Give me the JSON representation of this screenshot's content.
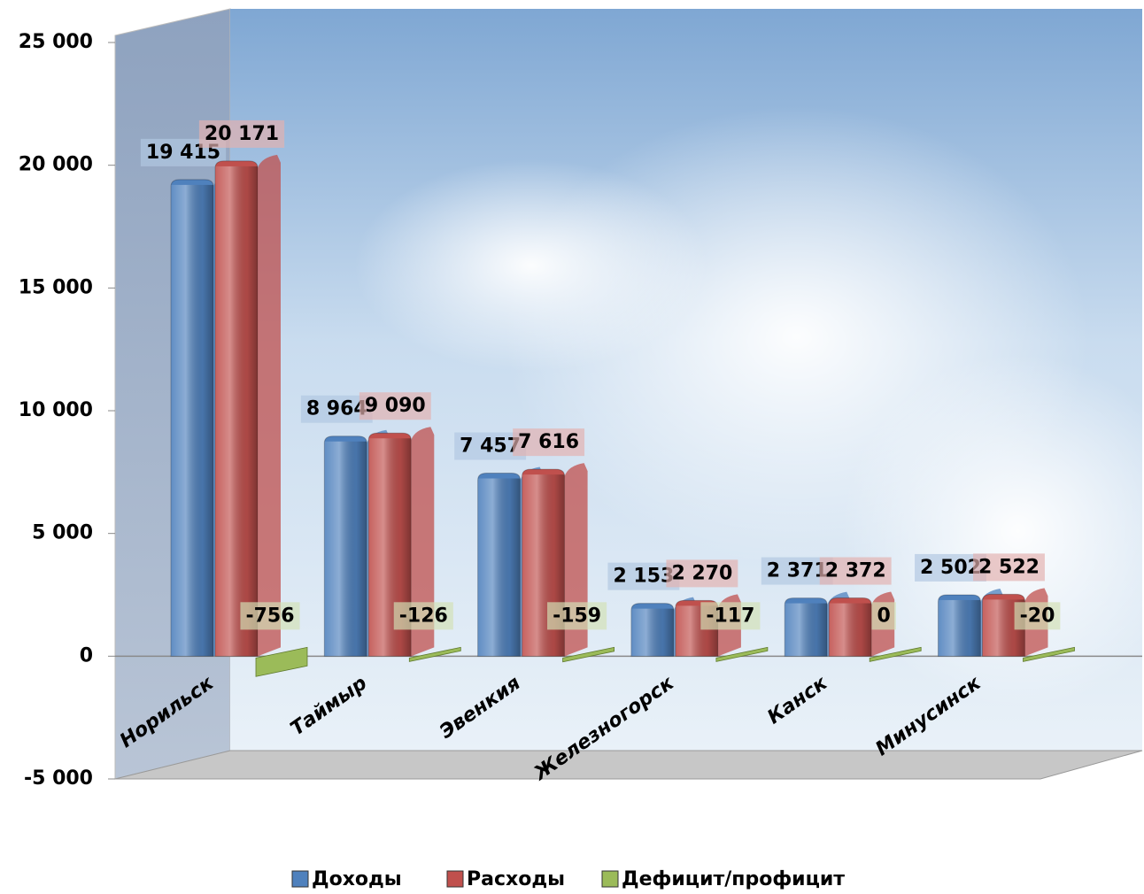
{
  "chart_data": {
    "type": "bar",
    "categories": [
      "Норильск",
      "Таймыр",
      "Эвенкия",
      "Железногорск",
      "Канск",
      "Минусинск"
    ],
    "series": [
      {
        "name": "Доходы",
        "color": "#4f81bd",
        "values": [
          19415,
          8964,
          7457,
          2153,
          2371,
          2502
        ],
        "value_labels": [
          "19 415",
          "8 964",
          "7 457",
          "2 153",
          "2 371",
          "2 502"
        ]
      },
      {
        "name": "Расходы",
        "color": "#c0504d",
        "values": [
          20171,
          9090,
          7616,
          2270,
          2372,
          2522
        ],
        "value_labels": [
          "20 171",
          "9 090",
          "7 616",
          "2 270",
          "2 372",
          "2 522"
        ]
      },
      {
        "name": "Дефицит/профицит",
        "color": "#9bbb59",
        "values": [
          -756,
          -126,
          -159,
          -117,
          0,
          -20
        ]
      }
    ],
    "ylim": [
      -5000,
      25000
    ],
    "yticks": [
      {
        "value": -5000,
        "label": "-5 000"
      },
      0,
      {
        "value": 5000,
        "label": "5 000"
      },
      {
        "value": 10000,
        "label": "10 000"
      },
      {
        "value": 15000,
        "label": "15 000"
      },
      {
        "value": 20000,
        "label": "20 000"
      },
      {
        "value": 25000,
        "label": "25 000"
      }
    ]
  }
}
